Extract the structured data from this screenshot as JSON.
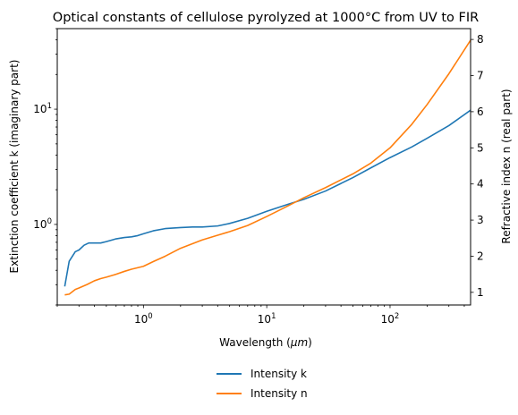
{
  "chart_data": {
    "type": "line",
    "title": "Optical constants of cellulose pyrolyzed at 1000°C from UV to FIR",
    "xlabel_prefix": "Wavelength (",
    "xlabel_unit": "μm",
    "xlabel_suffix": ")",
    "ylabel_left": "Extinction coefficient k (imaginary part)",
    "ylabel_right": "Refractive index n (real part)",
    "x_scale": "log",
    "y_left_scale": "log",
    "y_right_scale": "linear",
    "xlim": [
      0.2,
      450
    ],
    "ylim_left": [
      0.2,
      50
    ],
    "ylim_right": [
      0.65,
      8.3
    ],
    "x_ticks": [
      {
        "value": 1,
        "base": "10",
        "exp": "0"
      },
      {
        "value": 10,
        "base": "10",
        "exp": "1"
      },
      {
        "value": 100,
        "base": "10",
        "exp": "2"
      }
    ],
    "y_left_ticks": [
      {
        "value": 1,
        "base": "10",
        "exp": "0"
      },
      {
        "value": 10,
        "base": "10",
        "exp": "1"
      }
    ],
    "y_right_ticks": [
      "1",
      "2",
      "3",
      "4",
      "5",
      "6",
      "7",
      "8"
    ],
    "legend_position": "below",
    "grid": false,
    "series": [
      {
        "name": "Intensity k",
        "axis": "left",
        "color": "#1f77b4",
        "x": [
          0.23,
          0.25,
          0.28,
          0.3,
          0.33,
          0.36,
          0.4,
          0.45,
          0.5,
          0.6,
          0.7,
          0.8,
          0.9,
          1.0,
          1.2,
          1.5,
          2.0,
          2.5,
          3.0,
          4.0,
          5.0,
          7.0,
          10,
          15,
          20,
          30,
          50,
          70,
          100,
          150,
          200,
          300,
          450
        ],
        "y": [
          0.29,
          0.48,
          0.58,
          0.6,
          0.66,
          0.69,
          0.69,
          0.69,
          0.71,
          0.75,
          0.77,
          0.78,
          0.8,
          0.83,
          0.88,
          0.92,
          0.94,
          0.95,
          0.95,
          0.97,
          1.02,
          1.13,
          1.3,
          1.5,
          1.65,
          1.95,
          2.55,
          3.1,
          3.8,
          4.7,
          5.6,
          7.2,
          9.8
        ]
      },
      {
        "name": "Intensity n",
        "axis": "right",
        "color": "#ff7f0e",
        "x": [
          0.23,
          0.25,
          0.28,
          0.3,
          0.35,
          0.4,
          0.45,
          0.5,
          0.6,
          0.7,
          0.8,
          1.0,
          1.2,
          1.5,
          2.0,
          3.0,
          4.0,
          5.0,
          7.0,
          10,
          15,
          20,
          30,
          50,
          70,
          100,
          150,
          200,
          300,
          450
        ],
        "y": [
          0.93,
          0.95,
          1.08,
          1.12,
          1.22,
          1.32,
          1.38,
          1.42,
          1.5,
          1.58,
          1.64,
          1.72,
          1.85,
          2.0,
          2.22,
          2.45,
          2.58,
          2.68,
          2.85,
          3.1,
          3.4,
          3.62,
          3.9,
          4.28,
          4.58,
          5.0,
          5.65,
          6.2,
          7.05,
          7.98
        ]
      }
    ]
  }
}
